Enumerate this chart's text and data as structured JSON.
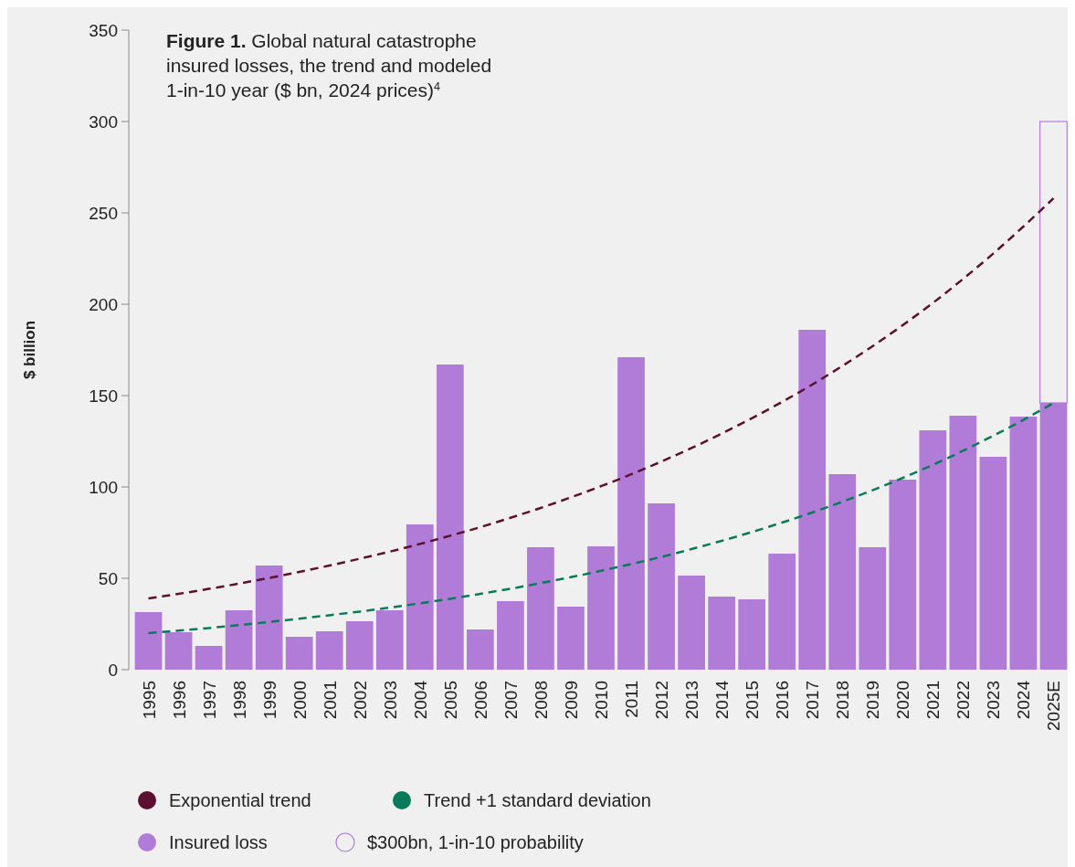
{
  "chart_data": {
    "type": "bar",
    "title": "Figure 1. Global natural catastrophe insured losses, the trend and modeled 1-in-10 year ($ bn, 2024 prices)$^{4}$",
    "ylabel": "$ billion",
    "categories": [
      "1995",
      "1996",
      "1997",
      "1998",
      "1999",
      "2000",
      "2001",
      "2002",
      "2003",
      "2004",
      "2005",
      "2006",
      "2007",
      "2008",
      "2009",
      "2010",
      "2011",
      "2012",
      "2013",
      "2014",
      "2015",
      "2016",
      "2017",
      "2018",
      "2019",
      "2020",
      "2021",
      "2022",
      "2023",
      "2024",
      "2025E"
    ],
    "stacked": true,
    "ylim": [
      0,
      350
    ],
    "yticks": [
      0,
      50,
      100,
      150,
      200,
      250,
      300,
      350
    ],
    "grid": false,
    "legend": "bottom",
    "line_style": "dashed",
    "marker": "none",
    "series": [
      {
        "name": "Exponential trend",
        "type": "line",
        "color": "#5c0f2e",
        "values": [
          39,
          41.5,
          44.2,
          47.1,
          50.2,
          53.5,
          57,
          60.7,
          64.6,
          68.8,
          73.3,
          78,
          83.1,
          88.5,
          94.3,
          100.4,
          106.9,
          113.9,
          121.3,
          129.2,
          137.6,
          146.5,
          156,
          166.2,
          177,
          188.5,
          200.7,
          213.8,
          227.7,
          242.5,
          258
        ]
      },
      {
        "name": "Trend +1 standard deviation",
        "type": "line",
        "color": "#0a7a5a",
        "values": [
          20,
          21.4,
          22.8,
          24.4,
          26.1,
          27.9,
          29.8,
          31.8,
          34,
          36.3,
          38.8,
          41.5,
          44.3,
          47.4,
          50.6,
          54.1,
          57.8,
          61.7,
          66,
          70.5,
          75.3,
          80.5,
          86,
          91.9,
          98.2,
          104.9,
          112.1,
          119.8,
          128,
          136.7,
          146
        ]
      },
      {
        "name": "Insured loss",
        "color": "#b07cd8",
        "values": [
          31.5,
          20.5,
          13,
          32.5,
          57,
          18,
          21,
          26.5,
          32.5,
          79.5,
          167,
          22,
          37.5,
          67,
          34.5,
          67.5,
          171,
          91,
          51.5,
          40,
          38.5,
          63.5,
          186,
          107,
          67,
          104,
          131,
          139,
          116.5,
          138.5,
          146
        ]
      },
      {
        "name": "$300bn, 1-in-10 probability",
        "color": "#b07cd8",
        "values": [
          null,
          null,
          null,
          null,
          null,
          null,
          null,
          null,
          null,
          null,
          null,
          null,
          null,
          null,
          null,
          null,
          null,
          null,
          null,
          null,
          null,
          null,
          null,
          null,
          null,
          null,
          null,
          null,
          null,
          null,
          154
        ]
      }
    ]
  }
}
